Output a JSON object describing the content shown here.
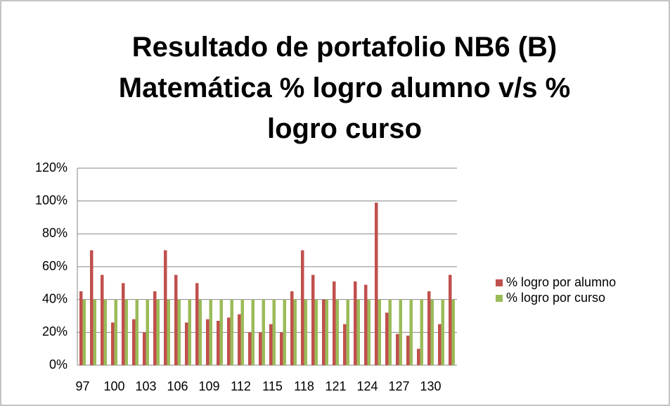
{
  "chart_data": {
    "type": "bar",
    "title": "Resultado de portafolio NB6 (B) Matemática % logro alumno v/s % logro curso",
    "categories": [
      "97",
      null,
      null,
      "100",
      null,
      null,
      "103",
      null,
      null,
      "106",
      null,
      null,
      "109",
      null,
      null,
      "112",
      null,
      null,
      "115",
      null,
      null,
      "118",
      null,
      null,
      "121",
      null,
      null,
      "124",
      null,
      null,
      "127",
      null,
      null,
      "130",
      null,
      null
    ],
    "series": [
      {
        "name": "% logro por alumno",
        "color": "#c0504d",
        "values": [
          45,
          70,
          55,
          26,
          50,
          28,
          20,
          45,
          70,
          55,
          26,
          50,
          28,
          27,
          29,
          31,
          20,
          20,
          25,
          20,
          45,
          70,
          55,
          40,
          51,
          25,
          51,
          49,
          99,
          32,
          19,
          18,
          10,
          45,
          25,
          55
        ]
      },
      {
        "name": "% logro por curso",
        "color": "#9bbb59",
        "values": [
          40,
          40,
          40,
          40,
          40,
          40,
          40,
          40,
          40,
          40,
          40,
          40,
          40,
          40,
          40,
          40,
          40,
          40,
          40,
          40,
          40,
          40,
          40,
          40,
          40,
          40,
          40,
          40,
          40,
          40,
          40,
          40,
          40,
          40,
          40,
          40
        ]
      }
    ],
    "ylim": [
      0,
      120
    ],
    "yticks": [
      {
        "value": 0,
        "label": "0%"
      },
      {
        "value": 20,
        "label": "20%"
      },
      {
        "value": 40,
        "label": "40%"
      },
      {
        "value": 60,
        "label": "60%"
      },
      {
        "value": 80,
        "label": "80%"
      },
      {
        "value": 100,
        "label": "100%"
      },
      {
        "value": 120,
        "label": "120%"
      }
    ],
    "grid": true,
    "legend": "right"
  }
}
